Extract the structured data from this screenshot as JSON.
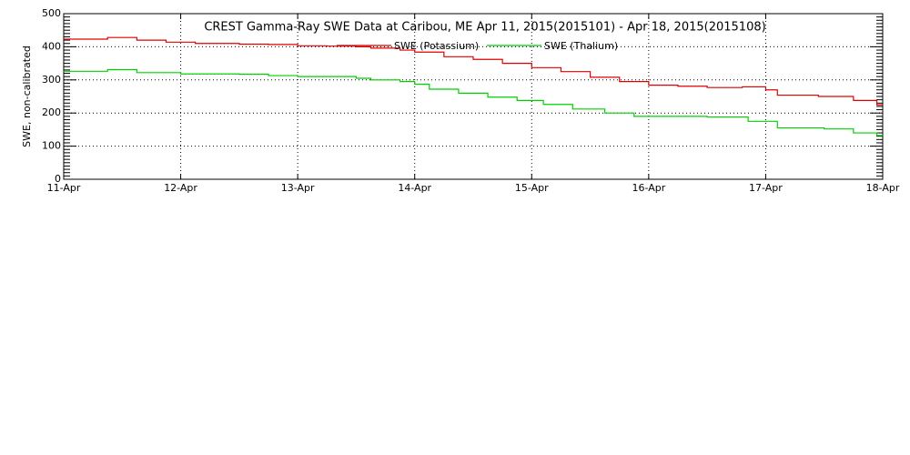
{
  "chart_data": {
    "type": "line",
    "title": "CREST Gamma-Ray SWE Data at Caribou, ME   Apr 11, 2015(2015101) - Apr 18, 2015(2015108)",
    "y_label": "SWE, non-calibrated",
    "xlim": [
      0,
      7
    ],
    "xticks": [
      {
        "value": 0,
        "label": "11-Apr"
      },
      {
        "value": 1,
        "label": "12-Apr"
      },
      {
        "value": 2,
        "label": "13-Apr"
      },
      {
        "value": 3,
        "label": "14-Apr"
      },
      {
        "value": 4,
        "label": "15-Apr"
      },
      {
        "value": 5,
        "label": "16-Apr"
      },
      {
        "value": 6,
        "label": "17-Apr"
      },
      {
        "value": 7,
        "label": "18-Apr"
      }
    ],
    "ylim": [
      0,
      500
    ],
    "yticks": [
      0,
      100,
      200,
      300,
      400,
      500
    ],
    "grid": true,
    "series": [
      {
        "name": "SWE (Potassium)",
        "color": "#e00000",
        "x": [
          0,
          0.375,
          0.625,
          0.875,
          1.125,
          1.5,
          1.75,
          2.0,
          2.25,
          2.5,
          2.625,
          2.875,
          3.0,
          3.25,
          3.5,
          3.75,
          4.0,
          4.25,
          4.5,
          4.75,
          5.0,
          5.25,
          5.5,
          5.8,
          6.0,
          6.1,
          6.45,
          6.75,
          6.95,
          7.0
        ],
        "values": [
          423,
          428,
          420,
          414,
          410,
          408,
          407,
          403,
          402,
          400,
          396,
          390,
          384,
          370,
          362,
          350,
          337,
          325,
          308,
          295,
          284,
          281,
          277,
          279,
          270,
          254,
          250,
          238,
          225,
          225
        ]
      },
      {
        "name": "SWE (Thalium)",
        "color": "#00d000",
        "x": [
          0,
          0.375,
          0.625,
          1.0,
          1.5,
          1.75,
          2.0,
          2.5,
          2.625,
          2.875,
          3.0,
          3.125,
          3.375,
          3.625,
          3.875,
          4.1,
          4.35,
          4.625,
          4.875,
          5.5,
          5.85,
          6.1,
          6.5,
          6.75,
          6.95,
          7.0
        ],
        "values": [
          326,
          331,
          322,
          318,
          317,
          313,
          310,
          305,
          300,
          295,
          287,
          272,
          260,
          248,
          238,
          226,
          212,
          200,
          190,
          188,
          175,
          155,
          152,
          140,
          132,
          132
        ]
      }
    ]
  }
}
